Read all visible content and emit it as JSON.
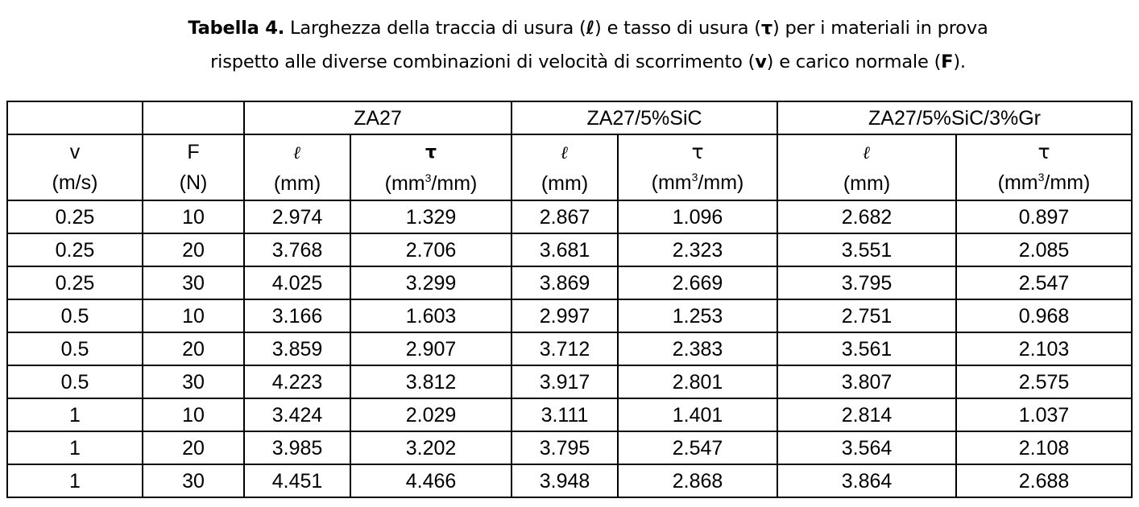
{
  "caption": {
    "label": "Tabella 4.",
    "line1_text": " Larghezza della traccia di usura (",
    "sym_l": "ℓ",
    "line1_mid": ") e tasso di usura (",
    "sym_t": "τ",
    "line1_end": ") per i materiali in prova",
    "line2_text": "rispetto alle diverse combinazioni di velocità di scorrimento (",
    "sym_v": "v",
    "line2_mid": ") e carico normale (",
    "sym_f": "F",
    "line2_end": ")."
  },
  "table": {
    "groups": [
      "ZA27",
      "ZA27/5%SiC",
      "ZA27/5%SiC/3%Gr"
    ],
    "columns": [
      {
        "symbol": "v",
        "unit": "(m/s)"
      },
      {
        "symbol": "F",
        "unit": "(N)"
      },
      {
        "symbol": "ℓ",
        "unit": "(mm)"
      },
      {
        "symbol": "τ",
        "unit_pre": "(mm",
        "unit_sup": "3",
        "unit_post": "/mm)"
      },
      {
        "symbol": "ℓ",
        "unit": "(mm)"
      },
      {
        "symbol": "τ",
        "unit_pre": "(mm",
        "unit_sup": "3",
        "unit_post": "/mm)"
      },
      {
        "symbol": "ℓ",
        "unit": "(mm)"
      },
      {
        "symbol": "τ",
        "unit_pre": "(mm",
        "unit_sup": "3",
        "unit_post": "/mm)"
      }
    ],
    "rows": [
      [
        "0.25",
        "10",
        "2.974",
        "1.329",
        "2.867",
        "1.096",
        "2.682",
        "0.897"
      ],
      [
        "0.25",
        "20",
        "3.768",
        "2.706",
        "3.681",
        "2.323",
        "3.551",
        "2.085"
      ],
      [
        "0.25",
        "30",
        "4.025",
        "3.299",
        "3.869",
        "2.669",
        "3.795",
        "2.547"
      ],
      [
        "0.5",
        "10",
        "3.166",
        "1.603",
        "2.997",
        "1.253",
        "2.751",
        "0.968"
      ],
      [
        "0.5",
        "20",
        "3.859",
        "2.907",
        "3.712",
        "2.383",
        "3.561",
        "2.103"
      ],
      [
        "0.5",
        "30",
        "4.223",
        "3.812",
        "3.917",
        "2.801",
        "3.807",
        "2.575"
      ],
      [
        "1",
        "10",
        "3.424",
        "2.029",
        "3.111",
        "1.401",
        "2.814",
        "1.037"
      ],
      [
        "1",
        "20",
        "3.985",
        "3.202",
        "3.795",
        "2.547",
        "3.564",
        "2.108"
      ],
      [
        "1",
        "30",
        "4.451",
        "4.466",
        "3.948",
        "2.868",
        "3.864",
        "2.688"
      ]
    ]
  }
}
